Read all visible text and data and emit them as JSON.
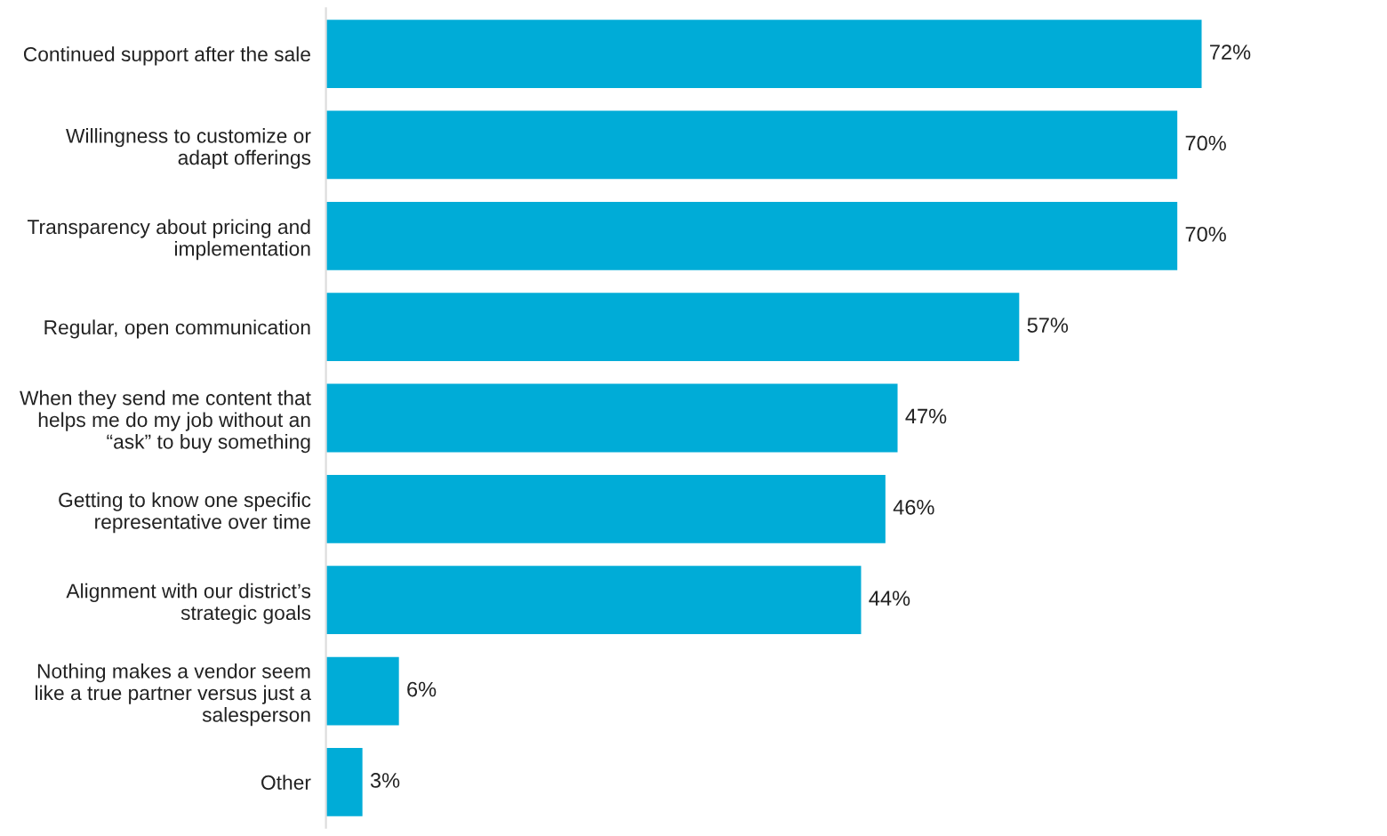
{
  "chart_data": {
    "type": "bar",
    "orientation": "horizontal",
    "categories": [
      "Continued support after the sale",
      "Willingness to customize or\nadapt offerings",
      "Transparency about pricing and\nimplementation",
      "Regular, open communication",
      "When they send me content that\nhelps me do my job without an\n“ask” to buy something",
      "Getting to know one specific\nrepresentative over time",
      "Alignment with our district’s\nstrategic goals",
      "Nothing makes a vendor seem\nlike a true partner versus just a\nsalesperson",
      "Other"
    ],
    "values": [
      72,
      70,
      70,
      57,
      47,
      46,
      44,
      6,
      3
    ],
    "value_labels": [
      "72%",
      "70%",
      "70%",
      "57%",
      "47%",
      "46%",
      "44%",
      "6%",
      "3%"
    ],
    "color": "#00acd7",
    "grid": false,
    "legend": false
  }
}
